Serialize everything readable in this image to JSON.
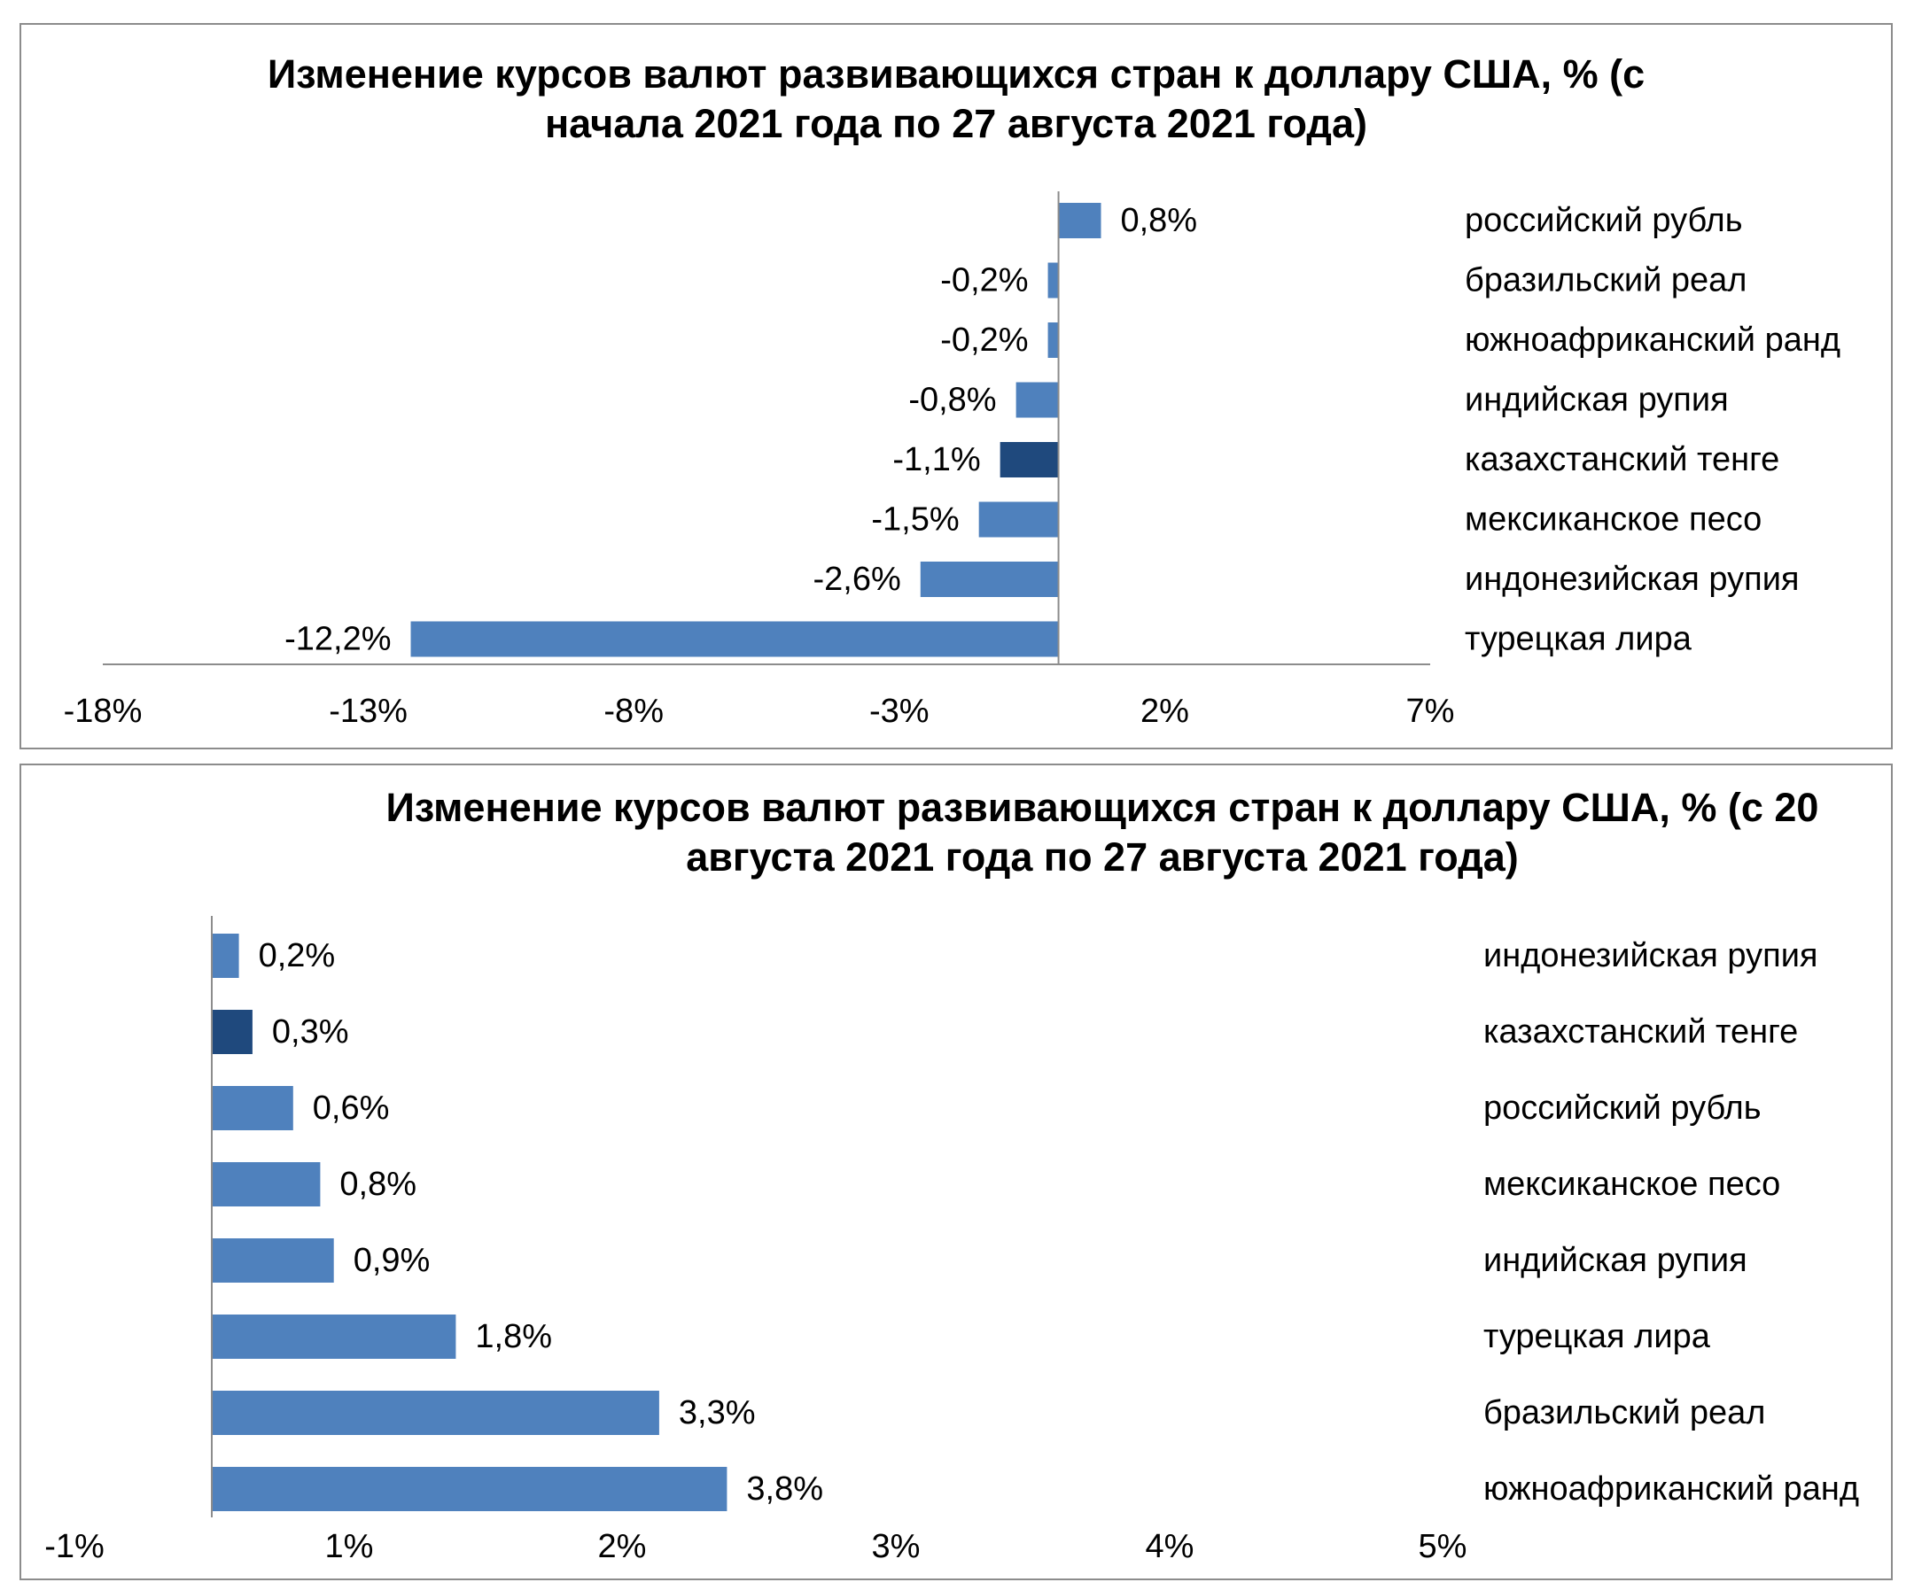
{
  "chart_data": [
    {
      "type": "bar",
      "orientation": "horizontal",
      "title": "Изменение курсов валют развивающихся стран к доллару США, % (с\nначала 2021 года по 27 августа 2021 года)",
      "categories": [
        "российский рубль",
        "бразильский реал",
        "южноафриканский ранд",
        "индийская рупия",
        "казахстанский тенге",
        "мексиканское песо",
        "индонезийская рупия",
        "турецкая лира"
      ],
      "values": [
        0.8,
        -0.2,
        -0.2,
        -0.8,
        -1.1,
        -1.5,
        -2.6,
        -12.2
      ],
      "data_labels": [
        "0,8%",
        "-0,2%",
        "-0,2%",
        "-0,8%",
        "-1,1%",
        "-1,5%",
        "-2,6%",
        "-12,2%"
      ],
      "highlight": [
        false,
        false,
        false,
        false,
        true,
        false,
        false,
        false
      ],
      "xlim": [
        -18,
        7
      ],
      "xticks": [
        -18,
        -13,
        -8,
        -3,
        2,
        7
      ],
      "xtick_labels": [
        "-18%",
        "-13%",
        "-8%",
        "-3%",
        "2%",
        "7%"
      ],
      "grid": false,
      "legend": "none",
      "colors": {
        "bar": "#4f81bd",
        "highlight": "#1f497d",
        "axis": "#8c8c8c"
      }
    },
    {
      "type": "bar",
      "orientation": "horizontal",
      "title": "Изменение курсов валют развивающихся стран к доллару США, % (с 20\nавгуста 2021 года по 27 августа 2021 года)",
      "categories": [
        "индонезийская рупия",
        "казахстанский тенге",
        "российский рубль",
        "мексиканское песо",
        "индийская рупия",
        "турецкая лира",
        "бразильский реал",
        "южноафриканский ранд"
      ],
      "values": [
        0.2,
        0.3,
        0.6,
        0.8,
        0.9,
        1.8,
        3.3,
        3.8
      ],
      "data_labels": [
        "0,2%",
        "0,3%",
        "0,6%",
        "0,8%",
        "0,9%",
        "1,8%",
        "3,3%",
        "3,8%"
      ],
      "highlight": [
        false,
        true,
        false,
        false,
        false,
        false,
        false,
        false
      ],
      "xlim": [
        -1,
        5
      ],
      "xticks": [
        -1,
        1,
        2,
        3,
        4,
        5
      ],
      "xtick_labels": [
        "-1%",
        "1%",
        "2%",
        "3%",
        "4%",
        "5%"
      ],
      "grid": false,
      "legend": "none",
      "colors": {
        "bar": "#4f81bd",
        "highlight": "#1f497d",
        "axis": "#8c8c8c"
      }
    }
  ]
}
